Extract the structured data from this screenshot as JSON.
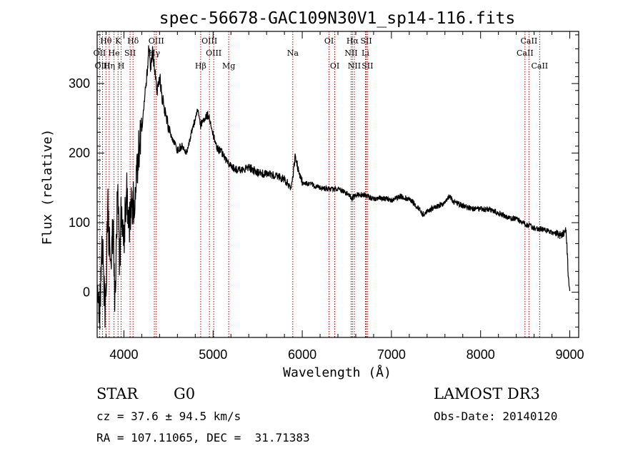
{
  "info": {
    "object_class": "STAR",
    "subclass": "G0",
    "survey": "LAMOST DR3",
    "redshift_line": "cz = 37.6 ± 94.5 km/s",
    "obs_date_line": "Obs-Date: 20140120",
    "coords_line": "RA = 107.11065, DEC =  31.71383"
  },
  "chart_data": {
    "type": "line",
    "title": "spec-56678-GAC109N30V1_sp14-116.fits",
    "xlabel": "Wavelength (Å)",
    "ylabel": "Flux (relative)",
    "xlim": [
      3700,
      9100
    ],
    "ylim": [
      -65,
      375
    ],
    "xticks": [
      4000,
      5000,
      6000,
      7000,
      8000,
      9000
    ],
    "yticks": [
      0,
      100,
      200,
      300
    ],
    "grid": false,
    "line_color": "#000000",
    "marker_color": "#c00000",
    "series": [
      {
        "values": [
          [
            3700,
            20
          ],
          [
            3730,
            -40
          ],
          [
            3760,
            80
          ],
          [
            3790,
            -50
          ],
          [
            3820,
            120
          ],
          [
            3850,
            30
          ],
          [
            3880,
            90
          ],
          [
            3900,
            -20
          ],
          [
            3930,
            160
          ],
          [
            3950,
            40
          ],
          [
            3970,
            110
          ],
          [
            4000,
            80
          ],
          [
            4030,
            150
          ],
          [
            4060,
            90
          ],
          [
            4080,
            130
          ],
          [
            4100,
            120
          ],
          [
            4130,
            150
          ],
          [
            4160,
            200
          ],
          [
            4200,
            240
          ],
          [
            4250,
            300
          ],
          [
            4280,
            350
          ],
          [
            4300,
            320
          ],
          [
            4320,
            345
          ],
          [
            4340,
            330
          ],
          [
            4370,
            290
          ],
          [
            4400,
            310
          ],
          [
            4430,
            280
          ],
          [
            4470,
            250
          ],
          [
            4520,
            230
          ],
          [
            4560,
            215
          ],
          [
            4600,
            205
          ],
          [
            4650,
            210
          ],
          [
            4700,
            200
          ],
          [
            4750,
            225
          ],
          [
            4800,
            250
          ],
          [
            4830,
            265
          ],
          [
            4860,
            240
          ],
          [
            4900,
            250
          ],
          [
            4940,
            255
          ],
          [
            4980,
            240
          ],
          [
            5020,
            215
          ],
          [
            5060,
            205
          ],
          [
            5100,
            200
          ],
          [
            5150,
            190
          ],
          [
            5200,
            180
          ],
          [
            5300,
            175
          ],
          [
            5400,
            180
          ],
          [
            5500,
            172
          ],
          [
            5600,
            170
          ],
          [
            5700,
            168
          ],
          [
            5800,
            162
          ],
          [
            5880,
            150
          ],
          [
            5920,
            195
          ],
          [
            5960,
            175
          ],
          [
            6000,
            158
          ],
          [
            6100,
            155
          ],
          [
            6200,
            150
          ],
          [
            6300,
            148
          ],
          [
            6400,
            148
          ],
          [
            6500,
            142
          ],
          [
            6560,
            135
          ],
          [
            6600,
            140
          ],
          [
            6700,
            140
          ],
          [
            6800,
            134
          ],
          [
            6900,
            136
          ],
          [
            7000,
            132
          ],
          [
            7100,
            138
          ],
          [
            7200,
            134
          ],
          [
            7300,
            122
          ],
          [
            7350,
            112
          ],
          [
            7400,
            117
          ],
          [
            7500,
            123
          ],
          [
            7600,
            128
          ],
          [
            7650,
            138
          ],
          [
            7700,
            130
          ],
          [
            7800,
            124
          ],
          [
            7900,
            120
          ],
          [
            8000,
            120
          ],
          [
            8100,
            118
          ],
          [
            8200,
            114
          ],
          [
            8300,
            108
          ],
          [
            8400,
            105
          ],
          [
            8500,
            98
          ],
          [
            8600,
            92
          ],
          [
            8700,
            90
          ],
          [
            8800,
            86
          ],
          [
            8900,
            82
          ],
          [
            8960,
            88
          ],
          [
            8985,
            20
          ],
          [
            9000,
            2
          ]
        ]
      }
    ],
    "lines": [
      {
        "name": "Hθ",
        "wavelength": 3798,
        "row": 1
      },
      {
        "name": "OII",
        "wavelength": 3727,
        "row": 2
      },
      {
        "name": "OIII",
        "wavelength": 3760,
        "row": 3
      },
      {
        "name": "Hη",
        "wavelength": 3835,
        "row": 3
      },
      {
        "name": "K",
        "wavelength": 3934,
        "row": 1
      },
      {
        "name": "He",
        "wavelength": 3889,
        "row": 2
      },
      {
        "name": "SII",
        "wavelength": 4069,
        "row": 2
      },
      {
        "name": "H",
        "wavelength": 3969,
        "row": 3
      },
      {
        "name": "Hδ",
        "wavelength": 4102,
        "row": 1
      },
      {
        "name": "OIII",
        "wavelength": 4363,
        "row": 1
      },
      {
        "name": "Hγ",
        "wavelength": 4341,
        "row": 2
      },
      {
        "name": "OIII",
        "wavelength": 4959,
        "row": 1
      },
      {
        "name": "OIII",
        "wavelength": 5007,
        "row": 2
      },
      {
        "name": "Hβ",
        "wavelength": 4861,
        "row": 3
      },
      {
        "name": "Mg",
        "wavelength": 5175,
        "row": 3
      },
      {
        "name": "Na",
        "wavelength": 5894,
        "row": 2
      },
      {
        "name": "OI",
        "wavelength": 6300,
        "row": 1
      },
      {
        "name": "OI",
        "wavelength": 6364,
        "row": 3
      },
      {
        "name": "Hα",
        "wavelength": 6563,
        "row": 1
      },
      {
        "name": "NII",
        "wavelength": 6548,
        "row": 2
      },
      {
        "name": "NII",
        "wavelength": 6584,
        "row": 3
      },
      {
        "name": "SII",
        "wavelength": 6717,
        "row": 1
      },
      {
        "name": "Li",
        "wavelength": 6708,
        "row": 2
      },
      {
        "name": "SII",
        "wavelength": 6731,
        "row": 3
      },
      {
        "name": "CaII",
        "wavelength": 8542,
        "row": 1
      },
      {
        "name": "CaII",
        "wavelength": 8498,
        "row": 2
      },
      {
        "name": "CaII",
        "wavelength": 8662,
        "row": 3
      }
    ]
  }
}
